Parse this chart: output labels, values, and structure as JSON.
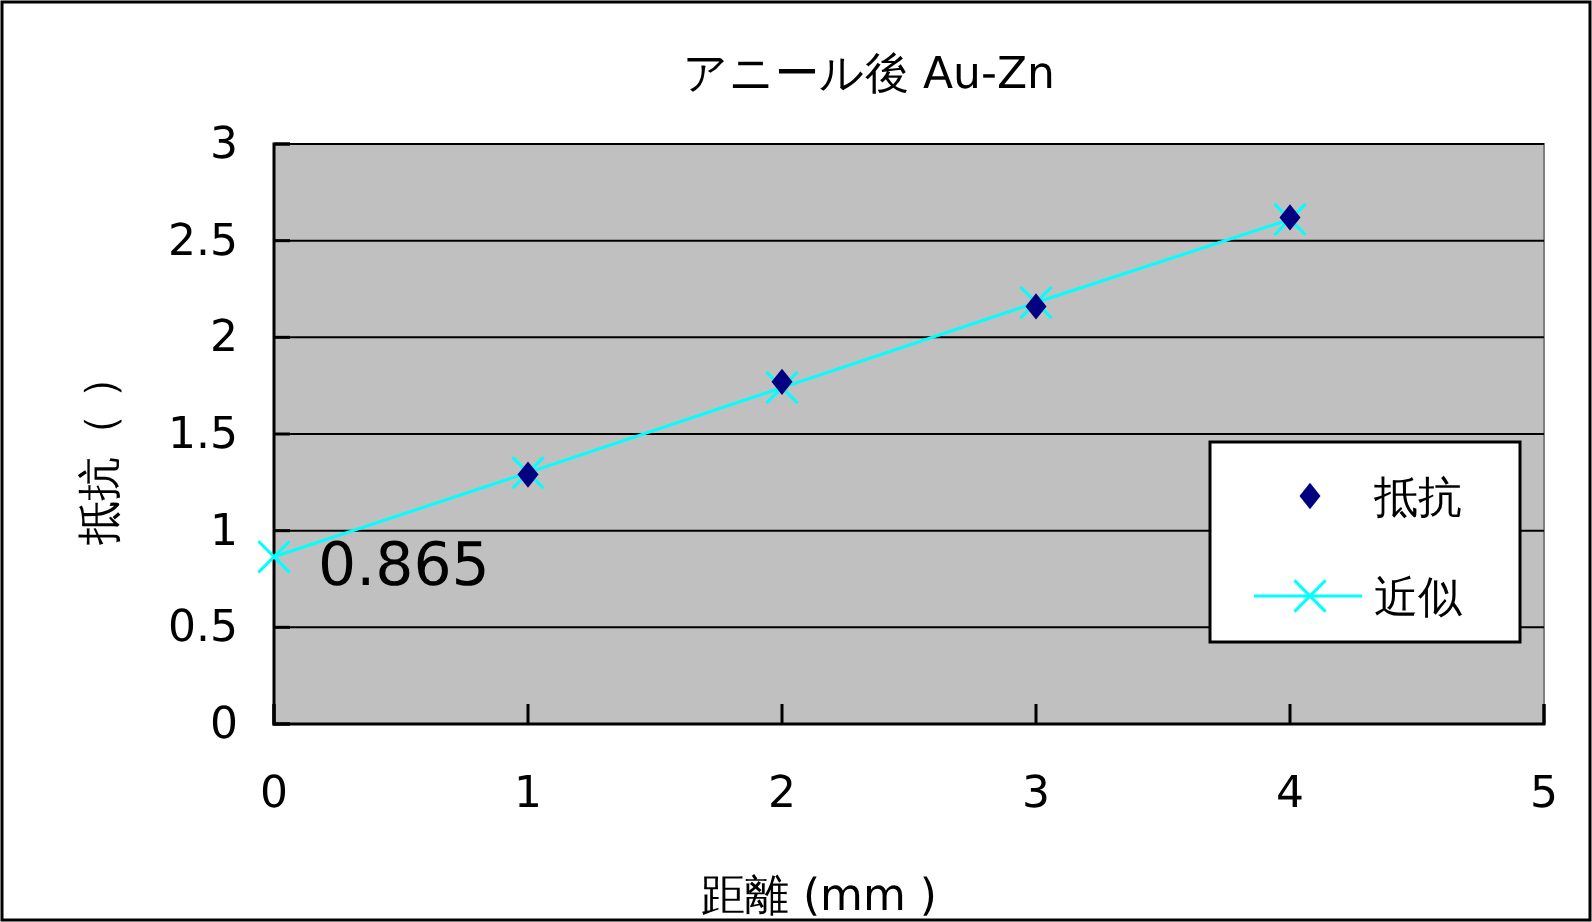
{
  "chart_data": {
    "type": "scatter",
    "title": "アニール後 Au-Zn",
    "xlabel": "距離 (mm )",
    "ylabel": "抵抗（ ）",
    "x": [
      1,
      2,
      3,
      4
    ],
    "series": [
      {
        "name": "抵抗",
        "marker": "diamond",
        "color": "#000080",
        "values": [
          1.29,
          1.77,
          2.16,
          2.62
        ]
      },
      {
        "name": "近似",
        "type": "line",
        "marker": "cross",
        "color": "#00ffff",
        "x": [
          0,
          1,
          2,
          3,
          4
        ],
        "values": [
          0.865,
          1.3,
          1.74,
          2.18,
          2.61
        ]
      }
    ],
    "annotations": [
      {
        "text": "0.865",
        "x": 0,
        "y": 0.865
      }
    ],
    "xlim": [
      0,
      5
    ],
    "xticks": [
      0,
      1,
      2,
      3,
      4,
      5
    ],
    "ylim": [
      0,
      3
    ],
    "yticks": [
      0,
      0.5,
      1,
      1.5,
      2,
      2.5,
      3
    ],
    "grid": "y",
    "legend": "right"
  }
}
